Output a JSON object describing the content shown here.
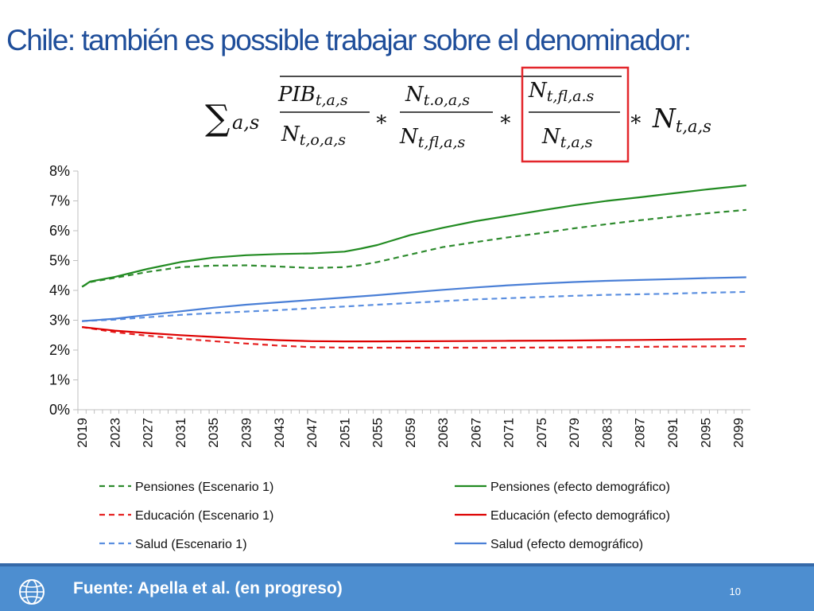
{
  "title": "Chile: también es possible trabajar sobre el denominador:",
  "formula": {
    "sum": "∑",
    "sum_sub": "a,s",
    "f1_num": "PIB",
    "f1_num_sub": "t,a,s",
    "f1_den": "N",
    "f1_den_sub": "t,o,a,s",
    "f2_num": "N",
    "f2_num_sub": "t.o,a,s",
    "f2_den": "N",
    "f2_den_sub": "t,fl,a,s",
    "f3_num": "N",
    "f3_num_sub": "t,fl,a.s",
    "f3_den": "N",
    "f3_den_sub": "t,a,s",
    "times": "∗",
    "last": "N",
    "last_sub": "t,a,s",
    "highlight_color": "#e3262b"
  },
  "chart_data": {
    "type": "line",
    "x_start": 2019,
    "x_end": 2100,
    "x_ticks": [
      "2019",
      "2023",
      "2027",
      "2031",
      "2035",
      "2039",
      "2043",
      "2047",
      "2051",
      "2055",
      "2059",
      "2063",
      "2067",
      "2071",
      "2075",
      "2079",
      "2083",
      "2087",
      "2091",
      "2095",
      "2099"
    ],
    "y_ticks": [
      "0%",
      "1%",
      "2%",
      "3%",
      "4%",
      "5%",
      "6%",
      "7%",
      "8%"
    ],
    "ylim": [
      0,
      8
    ],
    "legend_position": "bottom",
    "series": [
      {
        "name": "Pensiones (Escenario 1)",
        "color": "#2e8b2e",
        "dash": true,
        "points": [
          [
            2019,
            4.12
          ],
          [
            2020,
            4.28
          ],
          [
            2023,
            4.42
          ],
          [
            2027,
            4.62
          ],
          [
            2031,
            4.78
          ],
          [
            2035,
            4.83
          ],
          [
            2039,
            4.84
          ],
          [
            2043,
            4.8
          ],
          [
            2047,
            4.75
          ],
          [
            2051,
            4.78
          ],
          [
            2053,
            4.85
          ],
          [
            2055,
            4.95
          ],
          [
            2059,
            5.2
          ],
          [
            2063,
            5.45
          ],
          [
            2067,
            5.62
          ],
          [
            2071,
            5.78
          ],
          [
            2075,
            5.92
          ],
          [
            2079,
            6.08
          ],
          [
            2083,
            6.22
          ],
          [
            2087,
            6.35
          ],
          [
            2091,
            6.47
          ],
          [
            2095,
            6.58
          ],
          [
            2100,
            6.7
          ]
        ]
      },
      {
        "name": "Pensiones (efecto demográfico)",
        "color": "#228b22",
        "dash": false,
        "points": [
          [
            2019,
            4.12
          ],
          [
            2020,
            4.3
          ],
          [
            2023,
            4.45
          ],
          [
            2027,
            4.72
          ],
          [
            2031,
            4.95
          ],
          [
            2035,
            5.1
          ],
          [
            2039,
            5.18
          ],
          [
            2043,
            5.22
          ],
          [
            2047,
            5.24
          ],
          [
            2051,
            5.3
          ],
          [
            2053,
            5.4
          ],
          [
            2055,
            5.52
          ],
          [
            2059,
            5.85
          ],
          [
            2063,
            6.1
          ],
          [
            2067,
            6.32
          ],
          [
            2071,
            6.5
          ],
          [
            2075,
            6.68
          ],
          [
            2079,
            6.85
          ],
          [
            2083,
            7.0
          ],
          [
            2087,
            7.12
          ],
          [
            2091,
            7.25
          ],
          [
            2095,
            7.38
          ],
          [
            2100,
            7.52
          ]
        ]
      },
      {
        "name": "Educación (Escenario 1)",
        "color": "#e52222",
        "dash": true,
        "points": [
          [
            2019,
            2.77
          ],
          [
            2023,
            2.6
          ],
          [
            2027,
            2.48
          ],
          [
            2031,
            2.38
          ],
          [
            2035,
            2.3
          ],
          [
            2039,
            2.22
          ],
          [
            2043,
            2.15
          ],
          [
            2047,
            2.1
          ],
          [
            2051,
            2.08
          ],
          [
            2055,
            2.08
          ],
          [
            2063,
            2.08
          ],
          [
            2071,
            2.08
          ],
          [
            2079,
            2.09
          ],
          [
            2087,
            2.11
          ],
          [
            2095,
            2.12
          ],
          [
            2100,
            2.13
          ]
        ]
      },
      {
        "name": "Educación (efecto demográfico)",
        "color": "#dd0000",
        "dash": false,
        "points": [
          [
            2019,
            2.77
          ],
          [
            2023,
            2.65
          ],
          [
            2027,
            2.57
          ],
          [
            2031,
            2.5
          ],
          [
            2035,
            2.44
          ],
          [
            2039,
            2.38
          ],
          [
            2043,
            2.33
          ],
          [
            2047,
            2.3
          ],
          [
            2051,
            2.29
          ],
          [
            2055,
            2.29
          ],
          [
            2063,
            2.3
          ],
          [
            2071,
            2.31
          ],
          [
            2079,
            2.32
          ],
          [
            2087,
            2.34
          ],
          [
            2095,
            2.36
          ],
          [
            2100,
            2.37
          ]
        ]
      },
      {
        "name": "Salud (Escenario 1)",
        "color": "#5b8fe0",
        "dash": true,
        "points": [
          [
            2019,
            2.97
          ],
          [
            2023,
            3.02
          ],
          [
            2027,
            3.1
          ],
          [
            2031,
            3.18
          ],
          [
            2035,
            3.24
          ],
          [
            2039,
            3.29
          ],
          [
            2043,
            3.34
          ],
          [
            2047,
            3.4
          ],
          [
            2051,
            3.46
          ],
          [
            2055,
            3.52
          ],
          [
            2059,
            3.58
          ],
          [
            2063,
            3.64
          ],
          [
            2067,
            3.7
          ],
          [
            2071,
            3.74
          ],
          [
            2075,
            3.78
          ],
          [
            2079,
            3.82
          ],
          [
            2083,
            3.85
          ],
          [
            2087,
            3.87
          ],
          [
            2091,
            3.89
          ],
          [
            2095,
            3.92
          ],
          [
            2100,
            3.95
          ]
        ]
      },
      {
        "name": "Salud (efecto demográfico)",
        "color": "#4a7fd6",
        "dash": false,
        "points": [
          [
            2019,
            2.97
          ],
          [
            2023,
            3.05
          ],
          [
            2027,
            3.18
          ],
          [
            2031,
            3.3
          ],
          [
            2035,
            3.42
          ],
          [
            2039,
            3.52
          ],
          [
            2043,
            3.6
          ],
          [
            2047,
            3.68
          ],
          [
            2051,
            3.76
          ],
          [
            2055,
            3.84
          ],
          [
            2059,
            3.93
          ],
          [
            2063,
            4.02
          ],
          [
            2067,
            4.1
          ],
          [
            2071,
            4.17
          ],
          [
            2075,
            4.23
          ],
          [
            2079,
            4.28
          ],
          [
            2083,
            4.32
          ],
          [
            2087,
            4.35
          ],
          [
            2091,
            4.38
          ],
          [
            2095,
            4.41
          ],
          [
            2100,
            4.44
          ]
        ]
      }
    ]
  },
  "footer": {
    "source": "Fuente: Apella et al. (en progreso)",
    "page": "10",
    "icon": "globe-icon"
  }
}
